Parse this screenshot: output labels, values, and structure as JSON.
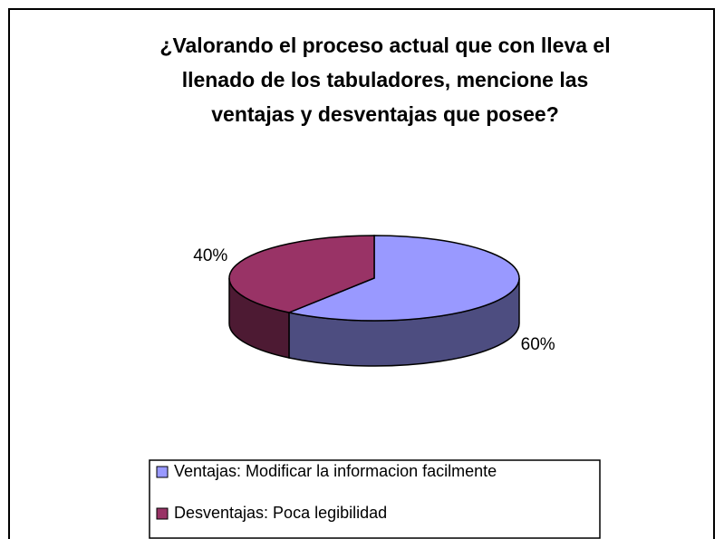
{
  "chart_data": {
    "type": "pie3d",
    "title": [
      "¿Valorando el proceso actual que con lleva el",
      "llenado de los tabuladores, mencione las",
      "ventajas y desventajas que posee?"
    ],
    "categories": [
      "Ventajas: Modificar la informacion facilmente",
      "Desventajas: Poca legibilidad"
    ],
    "values": [
      60,
      40
    ],
    "value_labels": [
      "60%",
      "40%"
    ],
    "colors": [
      "#9999ff",
      "#993366"
    ],
    "legend": "bottom"
  }
}
